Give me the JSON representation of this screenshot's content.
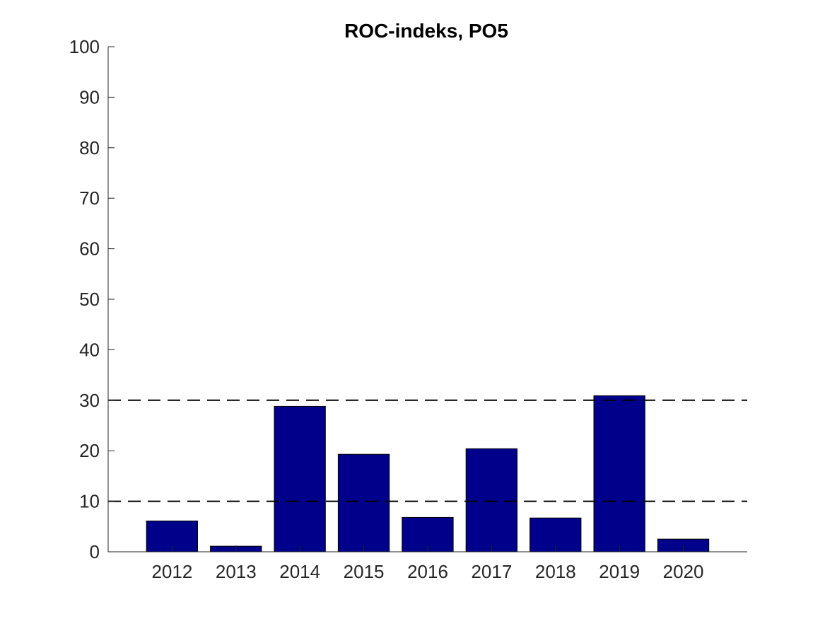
{
  "chart_data": {
    "type": "bar",
    "title": "ROC-indeks, PO5",
    "xlabel": "",
    "ylabel": "",
    "categories": [
      "2012",
      "2013",
      "2014",
      "2015",
      "2016",
      "2017",
      "2018",
      "2019",
      "2020"
    ],
    "values": [
      6.1,
      1.1,
      28.8,
      19.3,
      6.8,
      20.4,
      6.7,
      30.9,
      2.5
    ],
    "ylim": [
      0,
      100
    ],
    "yticks": [
      "0",
      "10",
      "20",
      "30",
      "40",
      "50",
      "60",
      "70",
      "80",
      "90",
      "100"
    ],
    "reference_lines": [
      10,
      30
    ],
    "grid": false,
    "colors": {
      "bar": "#00008B",
      "reference_line": "#000000",
      "axis": "#262626"
    }
  }
}
